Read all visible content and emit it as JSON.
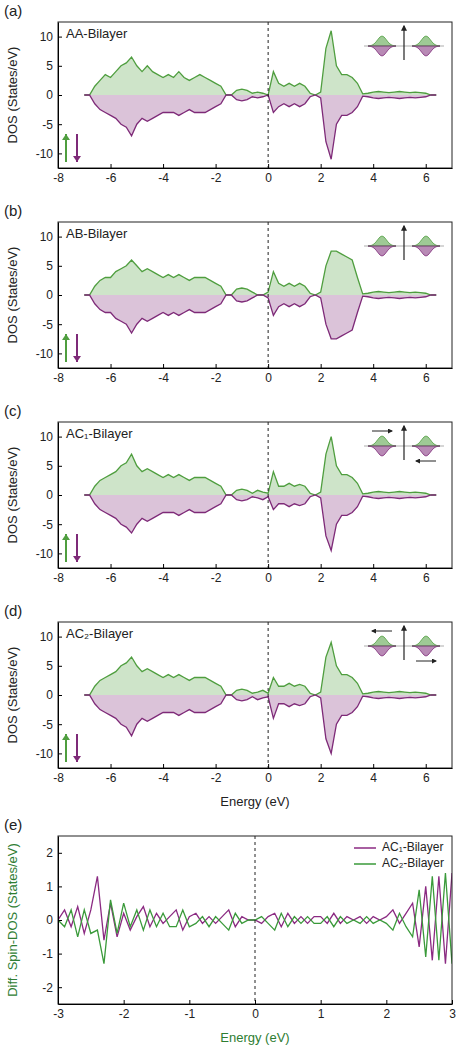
{
  "chart_data": [
    {
      "type": "area",
      "panel_label": "(a)",
      "title": "AA-Bilayer",
      "y_label": "DOS (States/eV)",
      "x": [
        -7.0,
        -6.8,
        -6.6,
        -6.4,
        -6.2,
        -6.0,
        -5.8,
        -5.6,
        -5.4,
        -5.2,
        -5.0,
        -4.8,
        -4.6,
        -4.4,
        -4.2,
        -4.0,
        -3.8,
        -3.6,
        -3.4,
        -3.2,
        -3.0,
        -2.8,
        -2.6,
        -2.4,
        -2.2,
        -2.0,
        -1.8,
        -1.6,
        -1.4,
        -1.2,
        -1.0,
        -0.8,
        -0.6,
        -0.4,
        -0.2,
        0.0,
        0.2,
        0.4,
        0.6,
        0.8,
        1.0,
        1.2,
        1.4,
        1.6,
        1.8,
        2.0,
        2.2,
        2.4,
        2.6,
        2.8,
        3.0,
        3.2,
        3.4,
        3.6,
        3.8,
        4.0,
        4.2,
        4.4,
        4.6,
        4.8,
        5.0,
        5.2,
        5.4,
        5.6,
        5.8,
        6.0,
        6.2,
        6.4
      ],
      "xlim": [
        -8,
        7
      ],
      "xticks": [
        -8,
        -6,
        -4,
        -2,
        0,
        2,
        4,
        6
      ],
      "ylim": [
        -12.5,
        12.5
      ],
      "yticks": [
        -10,
        -5,
        0,
        5,
        10
      ],
      "vlines": [
        0
      ],
      "legend": "lower left",
      "series": [
        {
          "color": "#4f9e3f",
          "values": [
            0,
            0,
            1.5,
            2.5,
            3.5,
            3,
            4,
            5,
            5.5,
            6.5,
            5,
            4,
            5,
            4,
            3.5,
            3,
            3.5,
            3,
            4,
            3,
            2.5,
            3,
            3.5,
            3,
            2.5,
            2,
            1.5,
            0,
            0,
            0.8,
            1,
            0.8,
            0.3,
            0.5,
            0.3,
            0,
            4,
            2,
            1.5,
            2,
            1.5,
            2,
            1.5,
            0.3,
            0,
            0.5,
            8,
            11,
            5,
            3.5,
            3.5,
            3,
            2,
            0.2,
            0.3,
            0.5,
            0.6,
            0.5,
            0.4,
            0.5,
            0.6,
            0.5,
            0.4,
            0.5,
            0.4,
            0.3,
            0,
            0
          ]
        },
        {
          "color": "#7e2a78",
          "values": [
            0,
            0,
            -1.5,
            -2.5,
            -3,
            -3.5,
            -4,
            -5,
            -5.5,
            -7,
            -5,
            -4,
            -4.5,
            -4,
            -3.5,
            -3,
            -3,
            -3,
            -3.5,
            -3,
            -2.5,
            -3,
            -3,
            -3,
            -2.5,
            -2,
            -1.5,
            0,
            0,
            -0.8,
            -1,
            -0.8,
            -0.3,
            -0.5,
            -0.3,
            0,
            -3,
            -2,
            -1.5,
            -2,
            -1.5,
            -2,
            -1.5,
            -0.3,
            0,
            -0.5,
            -8,
            -11,
            -5,
            -3.5,
            -3.5,
            -3,
            -2,
            -0.2,
            -0.3,
            -0.5,
            -0.6,
            -0.5,
            -0.4,
            -0.5,
            -0.6,
            -0.5,
            -0.4,
            -0.5,
            -0.4,
            -0.3,
            0,
            0
          ]
        }
      ]
    },
    {
      "type": "area",
      "panel_label": "(b)",
      "title": "AB-Bilayer",
      "y_label": "DOS (States/eV)",
      "x": [
        -7.0,
        -6.8,
        -6.6,
        -6.4,
        -6.2,
        -6.0,
        -5.8,
        -5.6,
        -5.4,
        -5.2,
        -5.0,
        -4.8,
        -4.6,
        -4.4,
        -4.2,
        -4.0,
        -3.8,
        -3.6,
        -3.4,
        -3.2,
        -3.0,
        -2.8,
        -2.6,
        -2.4,
        -2.2,
        -2.0,
        -1.8,
        -1.6,
        -1.4,
        -1.2,
        -1.0,
        -0.8,
        -0.6,
        -0.4,
        -0.2,
        0.0,
        0.2,
        0.4,
        0.6,
        0.8,
        1.0,
        1.2,
        1.4,
        1.6,
        1.8,
        2.0,
        2.2,
        2.4,
        2.6,
        2.8,
        3.0,
        3.2,
        3.4,
        3.6,
        3.8,
        4.0,
        4.2,
        4.4,
        4.6,
        4.8,
        5.0,
        5.2,
        5.4,
        5.6,
        5.8,
        6.0,
        6.2,
        6.4
      ],
      "xlim": [
        -8,
        7
      ],
      "xticks": [
        -8,
        -6,
        -4,
        -2,
        0,
        2,
        4,
        6
      ],
      "ylim": [
        -12.5,
        12.5
      ],
      "yticks": [
        -10,
        -5,
        0,
        5,
        10
      ],
      "vlines": [
        0
      ],
      "legend": "lower left",
      "series": [
        {
          "color": "#4f9e3f",
          "values": [
            0,
            0,
            1.5,
            2.5,
            3,
            3,
            4,
            4.5,
            5,
            6,
            5,
            4,
            4.5,
            4,
            3.5,
            3,
            3.5,
            3,
            3.5,
            3,
            2.5,
            3,
            3,
            3,
            2.5,
            2,
            1.5,
            0,
            0,
            1,
            1.2,
            1,
            0.5,
            0,
            0,
            0.5,
            4,
            2,
            1.5,
            2,
            1.5,
            2,
            1.5,
            0.3,
            0,
            0.5,
            5,
            7.5,
            7.5,
            7,
            6.5,
            6,
            3,
            0.2,
            0.3,
            0.5,
            0.6,
            0.5,
            0.4,
            0.5,
            0.6,
            0.5,
            0.4,
            0.5,
            0.4,
            0.3,
            0,
            0
          ]
        },
        {
          "color": "#7e2a78",
          "values": [
            0,
            0,
            -1.5,
            -2.5,
            -3,
            -3,
            -4,
            -4.5,
            -5,
            -6.5,
            -5,
            -4,
            -4.5,
            -4,
            -3.5,
            -3,
            -3.5,
            -3,
            -3.5,
            -3,
            -2.5,
            -3,
            -3,
            -3,
            -2.5,
            -2,
            -1.5,
            0,
            0,
            -1,
            -1.2,
            -1,
            -0.5,
            0,
            0,
            -0.5,
            -3.5,
            -2,
            -1.5,
            -2,
            -1.5,
            -2,
            -1.5,
            -0.3,
            0,
            -0.5,
            -5,
            -7.5,
            -7.5,
            -7,
            -6.5,
            -6,
            -3,
            -0.2,
            -0.3,
            -0.5,
            -0.6,
            -0.5,
            -0.4,
            -0.5,
            -0.6,
            -0.5,
            -0.4,
            -0.5,
            -0.4,
            -0.3,
            0,
            0
          ]
        }
      ]
    },
    {
      "type": "area",
      "panel_label": "(c)",
      "title": "AC₁-Bilayer",
      "y_label": "DOS (States/eV)",
      "x": [
        -7.0,
        -6.8,
        -6.6,
        -6.4,
        -6.2,
        -6.0,
        -5.8,
        -5.6,
        -5.4,
        -5.2,
        -5.0,
        -4.8,
        -4.6,
        -4.4,
        -4.2,
        -4.0,
        -3.8,
        -3.6,
        -3.4,
        -3.2,
        -3.0,
        -2.8,
        -2.6,
        -2.4,
        -2.2,
        -2.0,
        -1.8,
        -1.6,
        -1.4,
        -1.2,
        -1.0,
        -0.8,
        -0.6,
        -0.4,
        -0.2,
        0.0,
        0.2,
        0.4,
        0.6,
        0.8,
        1.0,
        1.2,
        1.4,
        1.6,
        1.8,
        2.0,
        2.2,
        2.4,
        2.6,
        2.8,
        3.0,
        3.2,
        3.4,
        3.6,
        3.8,
        4.0,
        4.2,
        4.4,
        4.6,
        4.8,
        5.0,
        5.2,
        5.4,
        5.6,
        5.8,
        6.0,
        6.2,
        6.4
      ],
      "xlim": [
        -8,
        7
      ],
      "xticks": [
        -8,
        -6,
        -4,
        -2,
        0,
        2,
        4,
        6
      ],
      "ylim": [
        -12.5,
        12.5
      ],
      "yticks": [
        -10,
        -5,
        0,
        5,
        10
      ],
      "vlines": [
        0
      ],
      "legend": "lower left",
      "series": [
        {
          "color": "#4f9e3f",
          "values": [
            0,
            0,
            1.5,
            2.5,
            3,
            3.5,
            4,
            5,
            5.5,
            7,
            5,
            4,
            4.5,
            4,
            3.5,
            3,
            3.5,
            3,
            3.5,
            3,
            2.5,
            3,
            3,
            3,
            2.5,
            2,
            1.5,
            0,
            0,
            0.8,
            1,
            0.8,
            0.3,
            0.8,
            0.5,
            0.3,
            4,
            1.5,
            1.5,
            2,
            1.5,
            1.8,
            1.5,
            0.3,
            0,
            0.5,
            7,
            10,
            5,
            3.5,
            3.5,
            3,
            2,
            0.2,
            0.3,
            0.5,
            0.6,
            0.5,
            0.4,
            0.5,
            0.6,
            0.5,
            0.4,
            0.5,
            0.4,
            0.3,
            0,
            0
          ]
        },
        {
          "color": "#7e2a78",
          "values": [
            0,
            0,
            -1.5,
            -2.5,
            -3,
            -3.5,
            -4,
            -5,
            -5.5,
            -6.5,
            -5,
            -4,
            -4.5,
            -4,
            -3.5,
            -3,
            -3,
            -3,
            -3.5,
            -3,
            -2.5,
            -3,
            -3,
            -3,
            -2.5,
            -2,
            -1.5,
            0,
            0,
            -0.8,
            -1,
            -0.8,
            -0.3,
            -0.5,
            -0.8,
            -0.3,
            -2.5,
            -1.5,
            -1.5,
            -2,
            -1.5,
            -1.8,
            -1.5,
            -0.3,
            0,
            -0.5,
            -7,
            -9.5,
            -5,
            -3.5,
            -3.5,
            -3,
            -2,
            -0.2,
            -0.3,
            -0.5,
            -0.6,
            -0.5,
            -0.4,
            -0.5,
            -0.6,
            -0.5,
            -0.4,
            -0.5,
            -0.4,
            -0.3,
            0,
            0
          ]
        }
      ]
    },
    {
      "type": "area",
      "panel_label": "(d)",
      "title": "AC₂-Bilayer",
      "y_label": "DOS (States/eV)",
      "x_label": "Energy (eV)",
      "x": [
        -7.0,
        -6.8,
        -6.6,
        -6.4,
        -6.2,
        -6.0,
        -5.8,
        -5.6,
        -5.4,
        -5.2,
        -5.0,
        -4.8,
        -4.6,
        -4.4,
        -4.2,
        -4.0,
        -3.8,
        -3.6,
        -3.4,
        -3.2,
        -3.0,
        -2.8,
        -2.6,
        -2.4,
        -2.2,
        -2.0,
        -1.8,
        -1.6,
        -1.4,
        -1.2,
        -1.0,
        -0.8,
        -0.6,
        -0.4,
        -0.2,
        0.0,
        0.2,
        0.4,
        0.6,
        0.8,
        1.0,
        1.2,
        1.4,
        1.6,
        1.8,
        2.0,
        2.2,
        2.4,
        2.6,
        2.8,
        3.0,
        3.2,
        3.4,
        3.6,
        3.8,
        4.0,
        4.2,
        4.4,
        4.6,
        4.8,
        5.0,
        5.2,
        5.4,
        5.6,
        5.8,
        6.0,
        6.2,
        6.4
      ],
      "xlim": [
        -8,
        7
      ],
      "xticks": [
        -8,
        -6,
        -4,
        -2,
        0,
        2,
        4,
        6
      ],
      "ylim": [
        -12.5,
        12.5
      ],
      "yticks": [
        -10,
        -5,
        0,
        5,
        10
      ],
      "vlines": [
        0
      ],
      "legend": "lower left",
      "series": [
        {
          "color": "#4f9e3f",
          "values": [
            0,
            0,
            1.5,
            2.5,
            3,
            3.5,
            4,
            5,
            5.5,
            6.5,
            5,
            4,
            4.5,
            4,
            3.5,
            3,
            3.5,
            3,
            3.5,
            3,
            2.5,
            3,
            3,
            3,
            2.5,
            2,
            1.5,
            0,
            0,
            0.8,
            1,
            0.8,
            0.3,
            0.5,
            0.8,
            0.3,
            3,
            1.5,
            1.5,
            2,
            1.5,
            1.8,
            1.5,
            0.3,
            0,
            0.5,
            6.5,
            9,
            5,
            3.5,
            3.5,
            3,
            2,
            0.2,
            0.3,
            0.5,
            0.6,
            0.5,
            0.4,
            0.5,
            0.6,
            0.5,
            0.4,
            0.5,
            0.4,
            0.3,
            0,
            0
          ]
        },
        {
          "color": "#7e2a78",
          "values": [
            0,
            0,
            -1.5,
            -2.5,
            -3,
            -3.5,
            -4,
            -5,
            -5.5,
            -7,
            -5,
            -4,
            -4.5,
            -4,
            -3.5,
            -3,
            -3,
            -3,
            -3.5,
            -3,
            -2.5,
            -3,
            -3,
            -3,
            -2.5,
            -2,
            -1.5,
            0,
            0,
            -0.8,
            -1,
            -0.8,
            -0.3,
            -0.8,
            -0.5,
            -0.3,
            -4,
            -1.5,
            -1.5,
            -2,
            -1.5,
            -1.8,
            -1.5,
            -0.3,
            0,
            -0.5,
            -7.5,
            -10,
            -5,
            -3.5,
            -3.5,
            -3,
            -2,
            -0.2,
            -0.3,
            -0.5,
            -0.6,
            -0.5,
            -0.4,
            -0.5,
            -0.6,
            -0.5,
            -0.4,
            -0.5,
            -0.4,
            -0.3,
            0,
            0
          ]
        }
      ]
    },
    {
      "type": "line",
      "panel_label": "(e)",
      "y_label": "Diff. Spin-DOS (States/eV)",
      "x_label": "Energy (eV)",
      "x": [
        -3.0,
        -2.9,
        -2.8,
        -2.7,
        -2.6,
        -2.5,
        -2.4,
        -2.3,
        -2.2,
        -2.1,
        -2.0,
        -1.9,
        -1.8,
        -1.7,
        -1.6,
        -1.5,
        -1.4,
        -1.3,
        -1.2,
        -1.1,
        -1.0,
        -0.9,
        -0.8,
        -0.7,
        -0.6,
        -0.5,
        -0.4,
        -0.3,
        -0.2,
        -0.1,
        0.0,
        0.1,
        0.2,
        0.3,
        0.4,
        0.5,
        0.6,
        0.7,
        0.8,
        0.9,
        1.0,
        1.1,
        1.2,
        1.3,
        1.4,
        1.5,
        1.6,
        1.7,
        1.8,
        1.9,
        2.0,
        2.1,
        2.2,
        2.3,
        2.4,
        2.5,
        2.6,
        2.7,
        2.8,
        2.9,
        3.0
      ],
      "xlim": [
        -3,
        3
      ],
      "xticks": [
        -3,
        -2,
        -1,
        0,
        1,
        2,
        3
      ],
      "ylim": [
        -2.5,
        2.5
      ],
      "yticks": [
        -2,
        -1,
        0,
        1,
        2
      ],
      "vlines": [
        0
      ],
      "legend": "upper right",
      "series": [
        {
          "name": "AC₁-Bilayer",
          "color": "#8b2a82",
          "values": [
            0,
            0.3,
            -0.2,
            0.4,
            -0.4,
            0.3,
            1.3,
            -0.6,
            0.5,
            -0.5,
            0.2,
            -0.3,
            0.1,
            0.4,
            -0.2,
            0.2,
            -0.1,
            0.1,
            0.3,
            -0.3,
            0.1,
            0.2,
            -0.1,
            0.1,
            -0.1,
            0.1,
            0.3,
            -0.2,
            0.1,
            0,
            0,
            -0.1,
            0.1,
            0.2,
            -0.2,
            0.2,
            -0.1,
            0.1,
            -0.1,
            0.1,
            0.1,
            -0.1,
            0.2,
            -0.1,
            0.1,
            0,
            0.1,
            -0.1,
            0.1,
            0,
            0.1,
            0.3,
            -0.1,
            0.2,
            0.5,
            -0.8,
            1.0,
            -1.2,
            1.3,
            -1.3,
            1.4
          ]
        },
        {
          "name": "AC₂-Bilayer",
          "color": "#3a9a3a",
          "values": [
            0,
            -0.2,
            0.3,
            -0.5,
            0.3,
            -0.4,
            -0.3,
            -1.3,
            0.6,
            -0.4,
            0.5,
            -0.2,
            0.3,
            -0.3,
            0.3,
            -0.2,
            0.2,
            -0.2,
            -0.2,
            0.3,
            -0.2,
            -0.1,
            0.1,
            -0.2,
            0.1,
            -0.1,
            -0.3,
            0.2,
            -0.1,
            0,
            0,
            0.1,
            -0.1,
            -0.3,
            0.2,
            -0.2,
            0.1,
            -0.1,
            0.1,
            -0.1,
            -0.1,
            0.1,
            -0.2,
            0.1,
            -0.1,
            0,
            -0.1,
            0.1,
            -0.1,
            0,
            -0.1,
            -0.3,
            0.2,
            -0.2,
            -0.5,
            0.9,
            -1.1,
            1.3,
            -1.2,
            1.4,
            -1.3
          ]
        }
      ]
    }
  ]
}
